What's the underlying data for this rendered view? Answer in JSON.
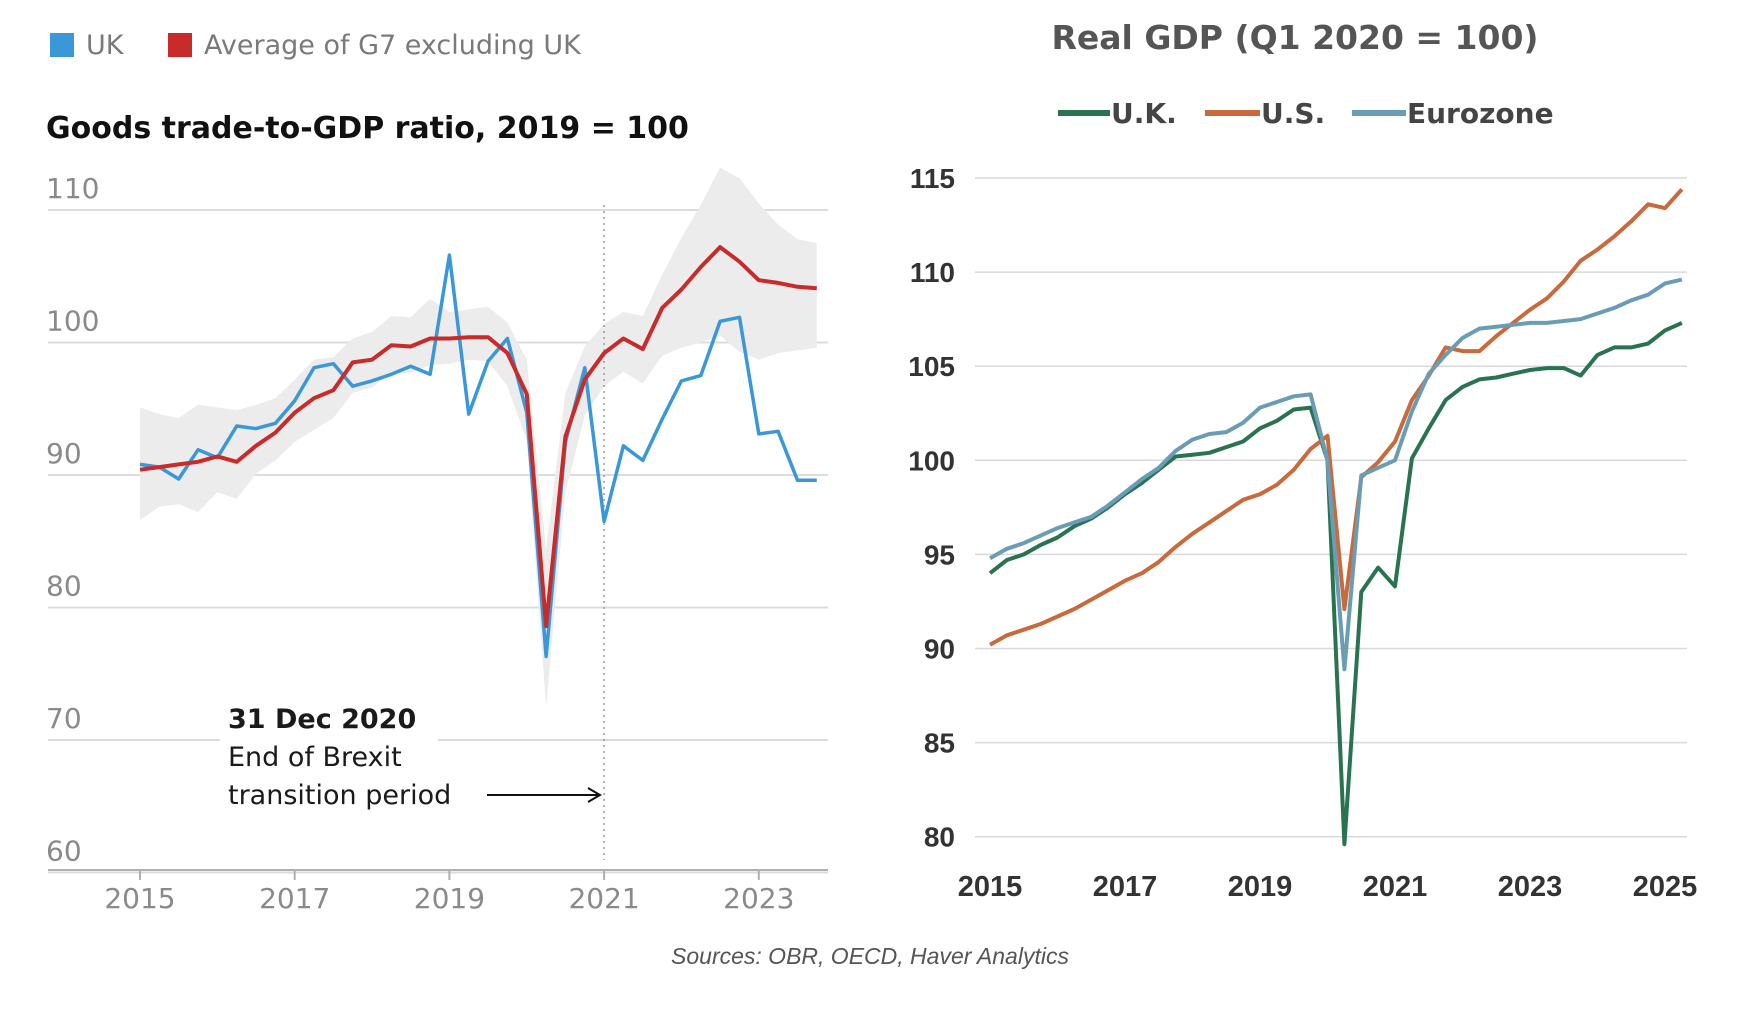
{
  "chart_data": [
    {
      "type": "line",
      "title": "Goods trade-to-GDP ratio, 2019 = 100",
      "xlabel": "",
      "ylabel": "",
      "xlim": [
        2014.6,
        2023.9
      ],
      "ylim": [
        58,
        112
      ],
      "y_ticks": [
        60,
        70,
        80,
        90,
        100,
        110
      ],
      "x_ticks": [
        2015,
        2017,
        2019,
        2021,
        2023
      ],
      "grid": "horizontal",
      "legend_position": "top-left",
      "legend": [
        {
          "label": "UK",
          "color": "#3a97d8"
        },
        {
          "label": "Average of G7 excluding UK",
          "color": "#c92a2a"
        }
      ],
      "x": [
        2015.0,
        2015.25,
        2015.5,
        2015.75,
        2016.0,
        2016.25,
        2016.5,
        2016.75,
        2017.0,
        2017.25,
        2017.5,
        2017.75,
        2018.0,
        2018.25,
        2018.5,
        2018.75,
        2019.0,
        2019.25,
        2019.5,
        2019.75,
        2020.0,
        2020.25,
        2020.5,
        2020.75,
        2021.0,
        2021.25,
        2021.5,
        2021.75,
        2022.0,
        2022.25,
        2022.5,
        2022.75,
        2023.0,
        2023.25,
        2023.5,
        2023.75
      ],
      "series": [
        {
          "name": "UK",
          "color": "#3a97d8",
          "values": [
            90.8,
            90.6,
            89.7,
            91.9,
            91.3,
            93.7,
            93.5,
            93.9,
            95.6,
            98.1,
            98.4,
            96.7,
            97.1,
            97.6,
            98.2,
            97.6,
            106.6,
            94.6,
            98.6,
            100.3,
            94.7,
            76.3,
            92.5,
            98.1,
            86.5,
            92.2,
            91.1,
            94.2,
            97.1,
            97.5,
            101.6,
            101.9,
            93.1,
            93.3,
            89.6,
            89.6
          ]
        },
        {
          "name": "Average of G7 excluding UK",
          "color": "#c92a2a",
          "values": [
            90.4,
            90.6,
            90.8,
            91.0,
            91.4,
            91.0,
            92.2,
            93.2,
            94.7,
            95.8,
            96.4,
            98.5,
            98.7,
            99.8,
            99.7,
            100.3,
            100.3,
            100.4,
            100.4,
            99.2,
            96.1,
            78.6,
            92.9,
            97.2,
            99.2,
            100.3,
            99.5,
            102.6,
            104.0,
            105.7,
            107.2,
            106.1,
            104.7,
            104.5,
            104.2,
            104.1
          ]
        },
        {
          "name": "",
          "type": "area-band",
          "color": "#ececec",
          "lower": [
            86.6,
            87.6,
            87.8,
            87.2,
            88.7,
            88.2,
            90.1,
            91.1,
            92.5,
            93.4,
            94.3,
            96.2,
            96.6,
            97.7,
            97.7,
            98.3,
            98.4,
            98.7,
            98.6,
            96.7,
            92.6,
            72.5,
            88.7,
            94.5,
            96.7,
            97.8,
            96.9,
            99.0,
            99.6,
            100.0,
            100.5,
            99.3,
            98.7,
            99.2,
            99.4,
            99.6
          ],
          "upper": [
            95.1,
            94.6,
            94.3,
            95.3,
            95.1,
            94.9,
            95.3,
            95.8,
            97.2,
            98.7,
            98.9,
            100.3,
            100.8,
            102.0,
            101.9,
            103.3,
            102.3,
            102.5,
            102.7,
            101.5,
            98.7,
            84.4,
            96.2,
            99.7,
            101.4,
            102.3,
            102.0,
            105.1,
            107.9,
            110.4,
            113.2,
            112.4,
            110.5,
            108.9,
            107.8,
            107.5
          ]
        }
      ],
      "annotations": [
        {
          "x": 2021.0,
          "style": "dotted-vertical-line"
        },
        {
          "title": "31 Dec 2020",
          "lines": [
            "End of Brexit",
            "transition period"
          ],
          "arrow_to_x": 2021.0
        }
      ]
    },
    {
      "type": "line",
      "title": "Real GDP (Q1 2020 = 100)",
      "xlabel": "",
      "ylabel": "",
      "xlim": [
        2015,
        2025.2
      ],
      "ylim": [
        80,
        115
      ],
      "y_ticks": [
        80,
        85,
        90,
        95,
        100,
        105,
        110,
        115
      ],
      "x_ticks": [
        2015,
        2017,
        2019,
        2021,
        2023,
        2025
      ],
      "grid": "horizontal",
      "legend_position": "top",
      "legend": [
        {
          "label": "U.K.",
          "color": "#2a7350"
        },
        {
          "label": "U.S.",
          "color": "#c86a3c"
        },
        {
          "label": "Eurozone",
          "color": "#6a9db5"
        }
      ],
      "x": [
        2015.0,
        2015.25,
        2015.5,
        2015.75,
        2016.0,
        2016.25,
        2016.5,
        2016.75,
        2017.0,
        2017.25,
        2017.5,
        2017.75,
        2018.0,
        2018.25,
        2018.5,
        2018.75,
        2019.0,
        2019.25,
        2019.5,
        2019.75,
        2020.0,
        2020.25,
        2020.5,
        2020.75,
        2021.0,
        2021.25,
        2021.5,
        2021.75,
        2022.0,
        2022.25,
        2022.5,
        2022.75,
        2023.0,
        2023.25,
        2023.5,
        2023.75,
        2024.0,
        2024.25,
        2024.5,
        2024.75,
        2025.0,
        2025.25
      ],
      "series": [
        {
          "name": "U.K.",
          "color": "#2a7350",
          "values": [
            94.0,
            94.7,
            95.0,
            95.5,
            95.9,
            96.5,
            96.9,
            97.5,
            98.2,
            98.8,
            99.5,
            100.2,
            100.3,
            100.4,
            100.7,
            101.0,
            101.7,
            102.1,
            102.7,
            102.8,
            100.0,
            79.6,
            93.0,
            94.3,
            93.3,
            100.1,
            101.7,
            103.2,
            103.9,
            104.3,
            104.4,
            104.6,
            104.8,
            104.9,
            104.9,
            104.5,
            105.6,
            106.0,
            106.0,
            106.2,
            106.9,
            107.3
          ]
        },
        {
          "name": "U.S.",
          "color": "#c86a3c",
          "values": [
            90.2,
            90.7,
            91.0,
            91.3,
            91.7,
            92.1,
            92.6,
            93.1,
            93.6,
            94.0,
            94.6,
            95.4,
            96.1,
            96.7,
            97.3,
            97.9,
            98.2,
            98.7,
            99.5,
            100.6,
            101.3,
            92.1,
            99.1,
            99.9,
            101.0,
            103.2,
            104.5,
            106.0,
            105.8,
            105.8,
            106.6,
            107.3,
            108.0,
            108.6,
            109.5,
            110.6,
            111.2,
            111.9,
            112.7,
            113.6,
            113.4,
            114.4
          ]
        },
        {
          "name": "Eurozone",
          "color": "#6a9db5",
          "values": [
            94.8,
            95.3,
            95.6,
            96.0,
            96.4,
            96.7,
            97.0,
            97.6,
            98.3,
            99.0,
            99.6,
            100.5,
            101.1,
            101.4,
            101.5,
            102.0,
            102.8,
            103.1,
            103.4,
            103.5,
            100.0,
            88.9,
            99.2,
            99.6,
            100.0,
            102.6,
            104.6,
            105.6,
            106.5,
            107.0,
            107.1,
            107.2,
            107.3,
            107.3,
            107.4,
            107.5,
            107.8,
            108.1,
            108.5,
            108.8,
            109.4,
            109.6
          ]
        }
      ]
    }
  ],
  "source_note": "Sources: OBR, OECD, Haver Analytics"
}
